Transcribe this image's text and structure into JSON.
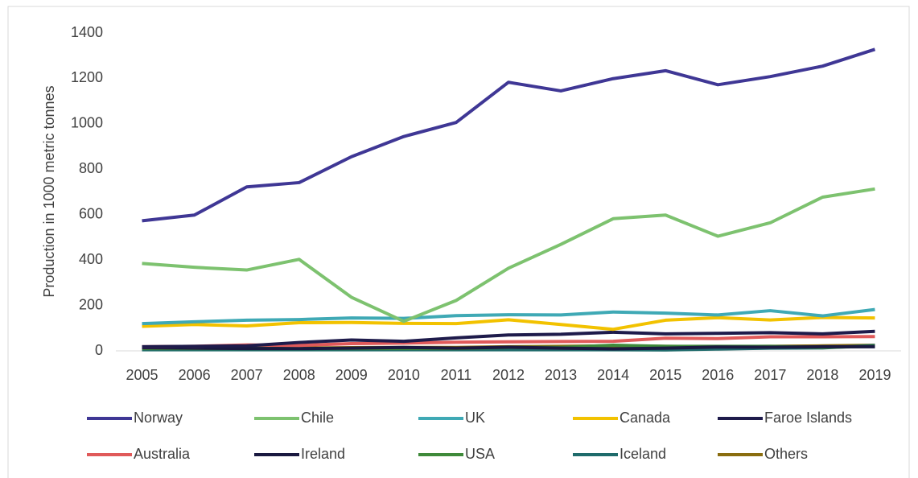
{
  "chart_data": {
    "type": "line",
    "y_label": "Production in 1000 metric tonnes",
    "categories": [
      "2005",
      "2006",
      "2007",
      "2008",
      "2009",
      "2010",
      "2011",
      "2012",
      "2013",
      "2014",
      "2015",
      "2016",
      "2017",
      "2018",
      "2019"
    ],
    "series": [
      {
        "name": "Norway",
        "color": "#3f3795",
        "values": [
          573,
          598,
          722,
          741,
          855,
          944,
          1006,
          1183,
          1145,
          1199,
          1234,
          1172,
          1208,
          1254,
          1328
        ]
      },
      {
        "name": "Chile",
        "color": "#7dc26f",
        "values": [
          385,
          368,
          356,
          403,
          236,
          130,
          222,
          364,
          469,
          582,
          598,
          505,
          564,
          677,
          713
        ]
      },
      {
        "name": "UK",
        "color": "#3fa9b5",
        "values": [
          120,
          128,
          135,
          138,
          145,
          143,
          155,
          159,
          158,
          171,
          166,
          158,
          177,
          154,
          182
        ]
      },
      {
        "name": "Canada",
        "color": "#f2c200",
        "values": [
          108,
          116,
          110,
          124,
          125,
          121,
          120,
          137,
          116,
          95,
          135,
          146,
          136,
          147,
          145
        ]
      },
      {
        "name": "Faroe Islands",
        "color": "#1e1b4b",
        "values": [
          18,
          20,
          22,
          37,
          48,
          42,
          57,
          70,
          73,
          82,
          75,
          77,
          80,
          75,
          86
        ]
      },
      {
        "name": "Australia",
        "color": "#e05a5a",
        "values": [
          18,
          20,
          26,
          24,
          32,
          34,
          38,
          40,
          41,
          42,
          56,
          54,
          62,
          62,
          63
        ]
      },
      {
        "name": "Ireland",
        "color": "#1a1940",
        "values": [
          14,
          12,
          10,
          10,
          12,
          15,
          12,
          16,
          12,
          9,
          12,
          17,
          16,
          18,
          18
        ]
      },
      {
        "name": "USA",
        "color": "#3f8a3a",
        "values": [
          10,
          10,
          10,
          10,
          10,
          10,
          10,
          15,
          15,
          25,
          20,
          20,
          20,
          15,
          20
        ]
      },
      {
        "name": "Iceland",
        "color": "#1f6b6b",
        "values": [
          5,
          5,
          5,
          5,
          5,
          5,
          5,
          5,
          5,
          5,
          4,
          8,
          12,
          13,
          24
        ]
      },
      {
        "name": "Others",
        "color": "#8a6d0f",
        "values": [
          10,
          10,
          12,
          12,
          14,
          15,
          15,
          18,
          20,
          22,
          20,
          18,
          20,
          22,
          25
        ]
      }
    ],
    "ylim": [
      0,
      1400
    ],
    "yticks": [
      0,
      200,
      400,
      600,
      800,
      1000,
      1200,
      1400
    ],
    "grid": false,
    "legend": "bottom"
  }
}
